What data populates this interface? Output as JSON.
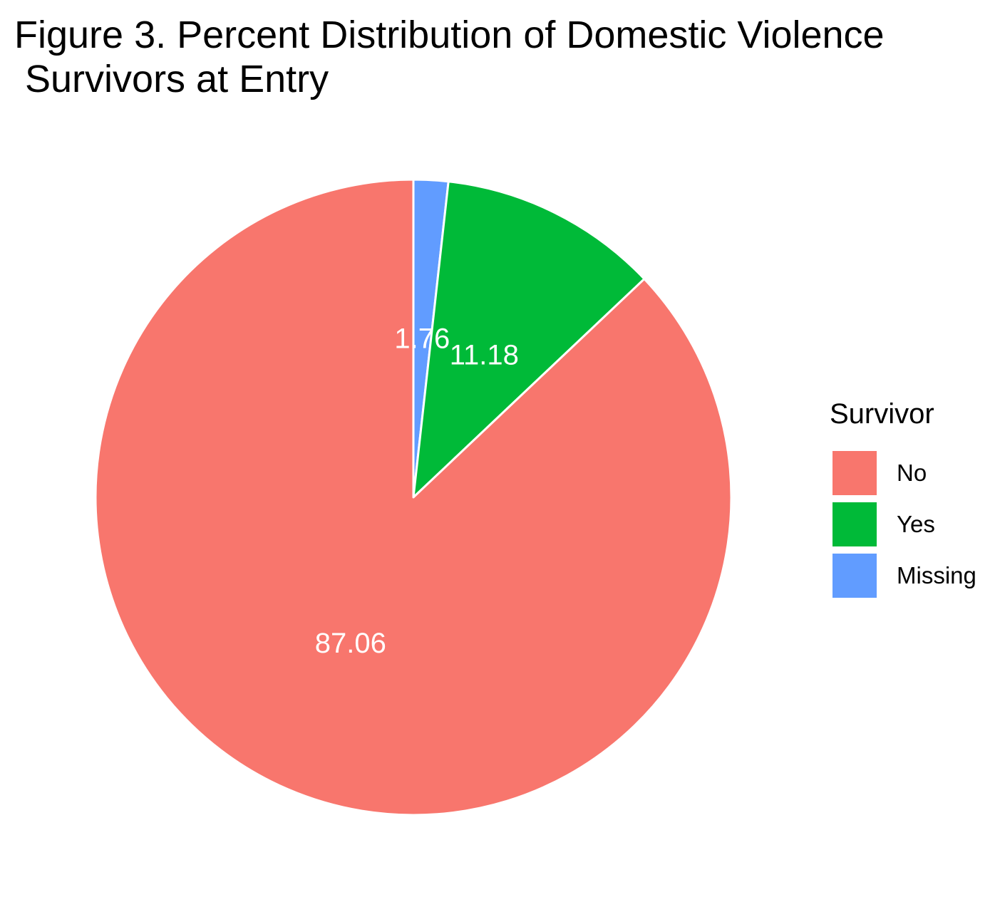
{
  "chart_data": {
    "type": "pie",
    "title": "Figure 3. Percent Distribution of Domestic Violence\n Survivors at Entry",
    "legend_title": "Survivor",
    "legend_position": "right",
    "start_angle": "top, clockwise",
    "slices": [
      {
        "label": "Missing",
        "value": 1.76,
        "color": "#619CFF"
      },
      {
        "label": "Yes",
        "value": 11.18,
        "color": "#00BA38"
      },
      {
        "label": "No",
        "value": 87.06,
        "color": "#F8766D"
      }
    ],
    "legend_order": [
      "No",
      "Yes",
      "Missing"
    ],
    "data_label_color": "#FFFFFF",
    "slice_border_color": "#FFFFFF"
  }
}
